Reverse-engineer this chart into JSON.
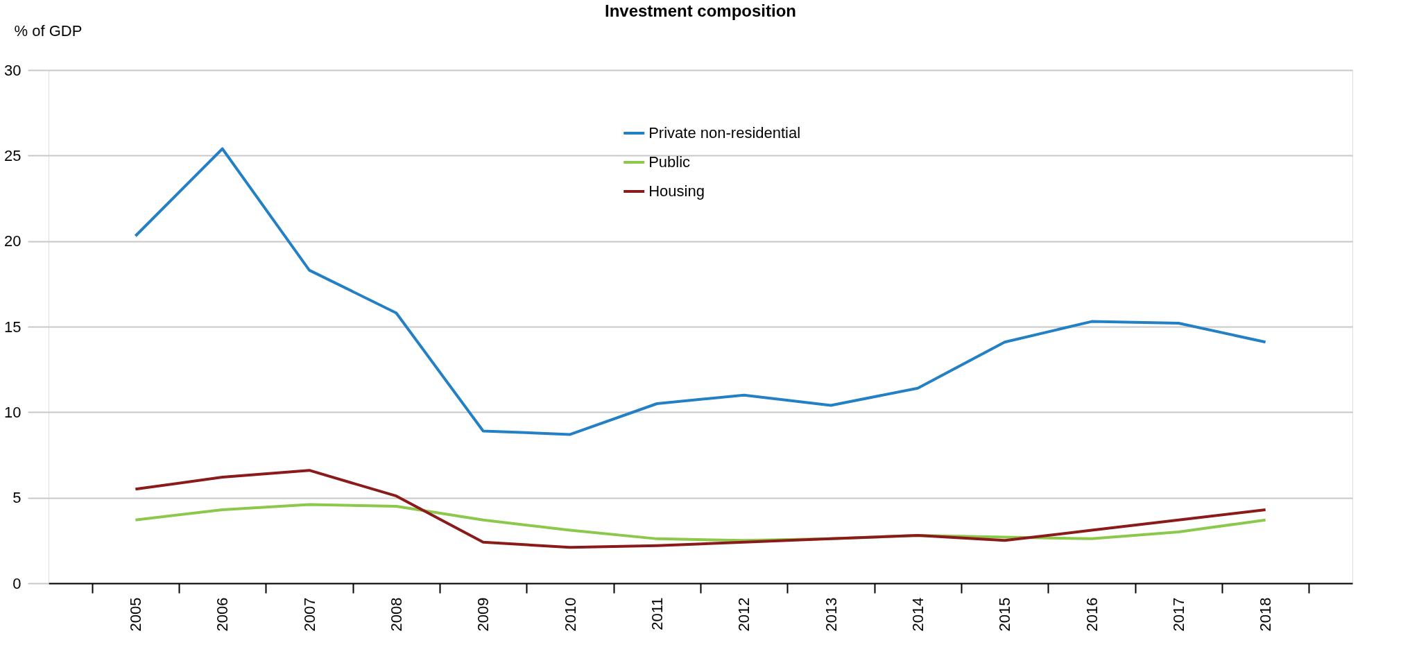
{
  "chart_data": {
    "type": "line",
    "title": "Investment composition",
    "ylabel": "% of GDP",
    "categories": [
      "2005",
      "2006",
      "2007",
      "2008",
      "2009",
      "2010",
      "2011",
      "2012",
      "2013",
      "2014",
      "2015",
      "2016",
      "2017",
      "2018"
    ],
    "series": [
      {
        "name": "Private non-residential",
        "color": "#2480c4",
        "values": [
          20.3,
          25.4,
          18.3,
          15.8,
          8.9,
          8.7,
          10.5,
          11.0,
          10.4,
          11.4,
          14.1,
          15.3,
          15.2,
          14.1
        ]
      },
      {
        "name": "Public",
        "color": "#8cc84b",
        "values": [
          3.7,
          4.3,
          4.6,
          4.5,
          3.7,
          3.1,
          2.6,
          2.5,
          2.6,
          2.8,
          2.7,
          2.6,
          3.0,
          3.7
        ]
      },
      {
        "name": "Housing",
        "color": "#8b1a1a",
        "values": [
          5.5,
          6.2,
          6.6,
          5.1,
          2.4,
          2.1,
          2.2,
          2.4,
          2.6,
          2.8,
          2.5,
          3.1,
          3.7,
          4.3
        ]
      }
    ],
    "ylim": [
      0,
      30
    ],
    "yticks": [
      0,
      5,
      10,
      15,
      20,
      25,
      30
    ],
    "grid": "y",
    "legend": "top",
    "marker": "none",
    "line_style": "solid"
  }
}
